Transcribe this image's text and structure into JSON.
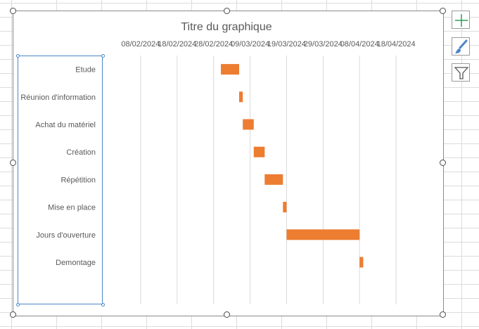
{
  "chart_data": {
    "type": "bar",
    "orientation": "horizontal",
    "stacked": true,
    "title": "Titre du graphique",
    "x_tick_labels": [
      "08/02/2024",
      "18/02/2024",
      "28/02/2024",
      "09/03/2024",
      "19/03/2024",
      "29/03/2024",
      "08/04/2024",
      "18/04/2024"
    ],
    "x_axis_position": "top",
    "xlim": [
      "29/01/2024",
      "28/04/2024"
    ],
    "categories": [
      "Etude",
      "Réunion d'information",
      "Achat du matériel",
      "Création",
      "Répétition",
      "Mise en place",
      "Jours d'ouverture",
      "Demontage"
    ],
    "series": [
      {
        "role": "start",
        "visible": false,
        "values": [
          "01/03/2024",
          "06/03/2024",
          "07/03/2024",
          "10/03/2024",
          "13/03/2024",
          "18/03/2024",
          "19/03/2024",
          "08/04/2024"
        ]
      },
      {
        "role": "duration",
        "visible": true,
        "color": "#ED7D31",
        "values": [
          5,
          1,
          3,
          3,
          5,
          1,
          20,
          1
        ]
      }
    ],
    "grid": true,
    "legend": "none",
    "gridline_color": "#d9d9d9",
    "bar_color": "#ED7D31"
  },
  "ui": {
    "chart_elements_icon": "plus-icon",
    "chart_styles_icon": "paintbrush-icon",
    "chart_filters_icon": "funnel-icon",
    "accent_color": "#4a86c8",
    "green_color": "#2e9e5b"
  }
}
